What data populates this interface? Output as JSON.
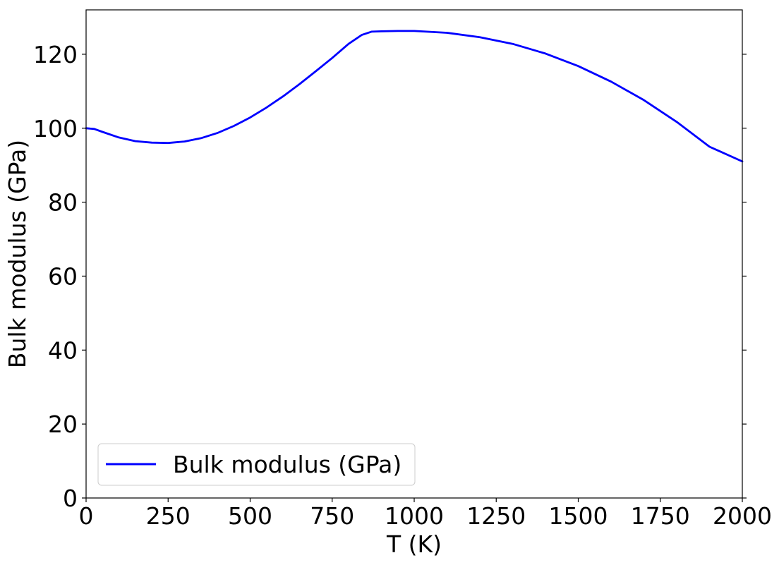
{
  "chart_data": {
    "type": "line",
    "xlabel": "T (K)",
    "ylabel": "Bulk modulus (GPa)",
    "xlim": [
      0,
      2000
    ],
    "ylim": [
      0,
      132
    ],
    "xticks": [
      0,
      250,
      500,
      750,
      1000,
      1250,
      1500,
      1750,
      2000
    ],
    "yticks": [
      0,
      20,
      40,
      60,
      80,
      100,
      120
    ],
    "grid": false,
    "legend": {
      "position": "lower-left"
    },
    "series": [
      {
        "name": "Bulk modulus (GPa)",
        "color": "#0000ff",
        "x": [
          0,
          25,
          50,
          100,
          150,
          200,
          250,
          300,
          350,
          400,
          450,
          500,
          550,
          600,
          650,
          700,
          750,
          800,
          840,
          870,
          900,
          950,
          1000,
          1100,
          1200,
          1300,
          1400,
          1500,
          1600,
          1700,
          1800,
          1900,
          2000
        ],
        "y": [
          100,
          99.8,
          99.0,
          97.5,
          96.5,
          96.1,
          96.0,
          96.4,
          97.3,
          98.7,
          100.6,
          102.9,
          105.6,
          108.6,
          111.9,
          115.4,
          119.0,
          122.8,
          125.2,
          126.1,
          126.2,
          126.3,
          126.3,
          125.8,
          124.6,
          122.8,
          120.2,
          116.8,
          112.6,
          107.6,
          101.7,
          95.0,
          91.0
        ]
      }
    ]
  }
}
